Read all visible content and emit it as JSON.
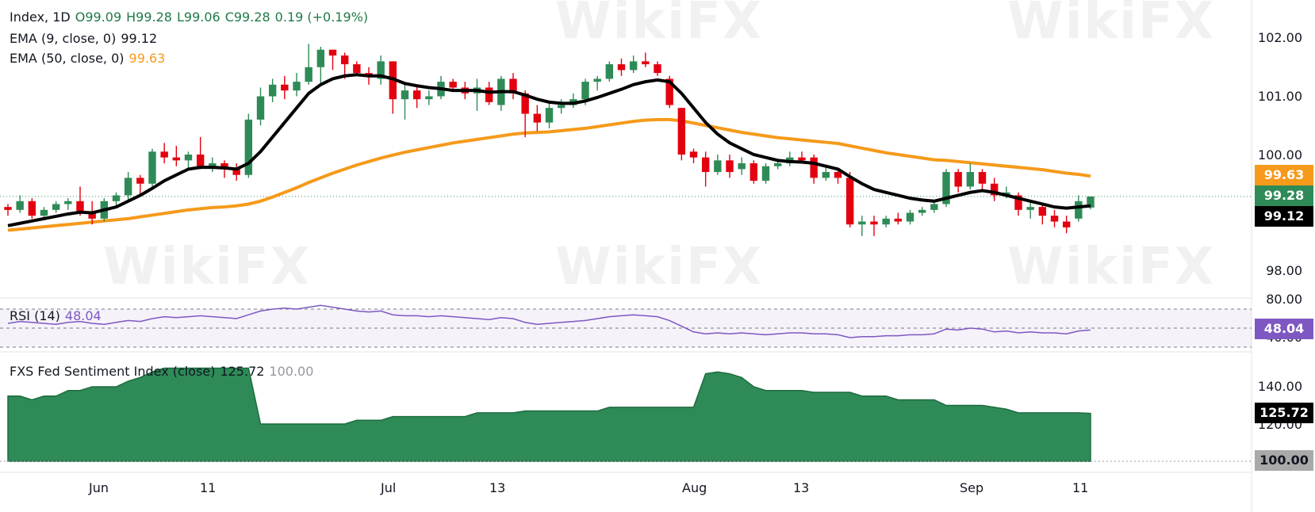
{
  "legend": {
    "symbol": "Index, 1D",
    "open": "O99.09",
    "high": "H99.28",
    "low": "L99.06",
    "close": "C99.28",
    "change": "0.19 (+0.19%)",
    "ema9_label": "EMA (9, close, 0)",
    "ema9_value": "99.12",
    "ema50_label": "EMA (50, close, 0)",
    "ema50_value": "99.63",
    "rsi_label": "RSI (14)",
    "rsi_value": "48.04",
    "fxs_label": "FXS Fed Sentiment Index (close)",
    "fxs_value": "125.72",
    "fxs_base": "100.00"
  },
  "price_tags": {
    "ema50": "99.63",
    "close": "99.28",
    "ema9": "99.12",
    "rsi": "48.04",
    "fxs": "125.72",
    "fxs_base": "100.00"
  },
  "y_axis": {
    "price": [
      "102.00",
      "101.00",
      "100.00",
      "98.00"
    ],
    "rsi": [
      "80.00",
      "40.00"
    ],
    "fxs": [
      "140.00",
      "120.00"
    ]
  },
  "x_axis": [
    "Jun",
    "11",
    "Jul",
    "13",
    "Aug",
    "13",
    "Sep",
    "11"
  ],
  "watermark": "WikiFX",
  "colors": {
    "up": "#2e8b57",
    "down": "#e3000f",
    "ema9": "#000000",
    "ema50": "#f59a1b",
    "rsi": "#7e57c2",
    "fxs_fill": "#2e8b57"
  },
  "chart_data": [
    {
      "type": "candlestick",
      "title": "Index, 1D",
      "ylim": [
        97.7,
        102.5
      ],
      "candles": [
        [
          99.1,
          99.15,
          98.95,
          99.05
        ],
        [
          99.05,
          99.3,
          99.0,
          99.2
        ],
        [
          99.2,
          99.25,
          98.9,
          98.95
        ],
        [
          98.95,
          99.1,
          98.9,
          99.05
        ],
        [
          99.05,
          99.2,
          99.0,
          99.15
        ],
        [
          99.15,
          99.25,
          99.05,
          99.2
        ],
        [
          99.2,
          99.45,
          98.95,
          99.0
        ],
        [
          99.0,
          99.2,
          98.8,
          98.9
        ],
        [
          98.9,
          99.25,
          98.85,
          99.2
        ],
        [
          99.2,
          99.35,
          99.1,
          99.3
        ],
        [
          99.3,
          99.7,
          99.2,
          99.6
        ],
        [
          99.6,
          99.65,
          99.3,
          99.5
        ],
        [
          99.5,
          100.1,
          99.45,
          100.05
        ],
        [
          100.05,
          100.2,
          99.85,
          99.95
        ],
        [
          99.95,
          100.15,
          99.8,
          99.9
        ],
        [
          99.9,
          100.05,
          99.75,
          100.0
        ],
        [
          100.0,
          100.3,
          99.75,
          99.8
        ],
        [
          99.8,
          99.95,
          99.7,
          99.85
        ],
        [
          99.85,
          99.9,
          99.6,
          99.75
        ],
        [
          99.75,
          99.85,
          99.55,
          99.65
        ],
        [
          99.65,
          100.7,
          99.6,
          100.6
        ],
        [
          100.6,
          101.15,
          100.5,
          101.0
        ],
        [
          101.0,
          101.3,
          100.9,
          101.2
        ],
        [
          101.2,
          101.35,
          100.95,
          101.1
        ],
        [
          101.1,
          101.4,
          101.0,
          101.25
        ],
        [
          101.25,
          101.9,
          101.2,
          101.5
        ],
        [
          101.5,
          101.85,
          101.2,
          101.8
        ],
        [
          101.8,
          101.8,
          101.45,
          101.7
        ],
        [
          101.7,
          101.75,
          101.3,
          101.55
        ],
        [
          101.55,
          101.6,
          101.35,
          101.4
        ],
        [
          101.4,
          101.5,
          101.2,
          101.35
        ],
        [
          101.3,
          101.7,
          101.2,
          101.6
        ],
        [
          101.6,
          101.6,
          100.7,
          100.95
        ],
        [
          100.95,
          101.2,
          100.6,
          101.1
        ],
        [
          101.1,
          101.2,
          100.8,
          100.95
        ],
        [
          100.95,
          101.1,
          100.85,
          101.0
        ],
        [
          101.0,
          101.35,
          100.95,
          101.25
        ],
        [
          101.25,
          101.3,
          101.1,
          101.15
        ],
        [
          101.15,
          101.25,
          100.95,
          101.05
        ],
        [
          101.05,
          101.3,
          100.75,
          101.15
        ],
        [
          101.15,
          101.25,
          100.85,
          100.9
        ],
        [
          100.85,
          101.35,
          100.75,
          101.3
        ],
        [
          101.3,
          101.4,
          100.95,
          101.05
        ],
        [
          101.05,
          101.1,
          100.3,
          100.7
        ],
        [
          100.7,
          100.85,
          100.4,
          100.55
        ],
        [
          100.55,
          100.9,
          100.45,
          100.8
        ],
        [
          100.8,
          100.95,
          100.7,
          100.85
        ],
        [
          100.85,
          101.05,
          100.8,
          100.95
        ],
        [
          100.95,
          101.3,
          100.85,
          101.25
        ],
        [
          101.25,
          101.35,
          101.1,
          101.3
        ],
        [
          101.3,
          101.6,
          101.25,
          101.55
        ],
        [
          101.55,
          101.65,
          101.35,
          101.45
        ],
        [
          101.45,
          101.7,
          101.4,
          101.6
        ],
        [
          101.6,
          101.75,
          101.5,
          101.55
        ],
        [
          101.55,
          101.6,
          101.35,
          101.4
        ],
        [
          101.3,
          101.35,
          100.8,
          100.85
        ],
        [
          100.8,
          100.8,
          99.9,
          100.0
        ],
        [
          100.05,
          100.1,
          99.85,
          99.95
        ],
        [
          99.95,
          100.05,
          99.45,
          99.7
        ],
        [
          99.7,
          100.0,
          99.65,
          99.9
        ],
        [
          99.9,
          100.0,
          99.6,
          99.7
        ],
        [
          99.75,
          99.95,
          99.65,
          99.85
        ],
        [
          99.85,
          99.9,
          99.5,
          99.55
        ],
        [
          99.55,
          99.85,
          99.5,
          99.8
        ],
        [
          99.8,
          99.9,
          99.75,
          99.85
        ],
        [
          99.85,
          100.05,
          99.8,
          99.95
        ],
        [
          99.95,
          100.05,
          99.85,
          99.9
        ],
        [
          99.95,
          100.0,
          99.5,
          99.6
        ],
        [
          99.6,
          99.8,
          99.55,
          99.7
        ],
        [
          99.7,
          99.75,
          99.5,
          99.6
        ],
        [
          99.6,
          99.7,
          98.75,
          98.8
        ],
        [
          98.8,
          98.95,
          98.6,
          98.85
        ],
        [
          98.85,
          98.95,
          98.6,
          98.8
        ],
        [
          98.8,
          98.95,
          98.75,
          98.9
        ],
        [
          98.9,
          99.0,
          98.8,
          98.85
        ],
        [
          98.85,
          99.05,
          98.8,
          99.0
        ],
        [
          99.0,
          99.1,
          98.95,
          99.05
        ],
        [
          99.05,
          99.2,
          99.0,
          99.15
        ],
        [
          99.15,
          99.75,
          99.1,
          99.7
        ],
        [
          99.7,
          99.75,
          99.35,
          99.45
        ],
        [
          99.45,
          99.85,
          99.4,
          99.7
        ],
        [
          99.7,
          99.75,
          99.4,
          99.5
        ],
        [
          99.5,
          99.6,
          99.2,
          99.3
        ],
        [
          99.3,
          99.45,
          99.25,
          99.35
        ],
        [
          99.3,
          99.35,
          98.95,
          99.05
        ],
        [
          99.05,
          99.2,
          98.9,
          99.1
        ],
        [
          99.1,
          99.15,
          98.8,
          98.95
        ],
        [
          98.95,
          99.05,
          98.75,
          98.85
        ],
        [
          98.85,
          98.95,
          98.65,
          98.75
        ],
        [
          98.9,
          99.3,
          98.85,
          99.2
        ],
        [
          99.09,
          99.28,
          99.06,
          99.28
        ]
      ],
      "ema9": [
        98.78,
        98.82,
        98.86,
        98.9,
        98.94,
        98.98,
        99.01,
        99.0,
        99.05,
        99.1,
        99.2,
        99.3,
        99.42,
        99.55,
        99.65,
        99.75,
        99.78,
        99.78,
        99.77,
        99.75,
        99.85,
        100.05,
        100.3,
        100.55,
        100.8,
        101.05,
        101.2,
        101.3,
        101.35,
        101.37,
        101.35,
        101.35,
        101.3,
        101.22,
        101.18,
        101.15,
        101.13,
        101.1,
        101.1,
        101.1,
        101.07,
        101.08,
        101.08,
        101.02,
        100.95,
        100.9,
        100.88,
        100.88,
        100.92,
        100.98,
        101.05,
        101.12,
        101.2,
        101.25,
        101.28,
        101.25,
        101.05,
        100.8,
        100.55,
        100.35,
        100.2,
        100.1,
        100.0,
        99.95,
        99.9,
        99.88,
        99.87,
        99.85,
        99.8,
        99.75,
        99.62,
        99.5,
        99.4,
        99.35,
        99.3,
        99.25,
        99.22,
        99.2,
        99.25,
        99.3,
        99.35,
        99.38,
        99.35,
        99.3,
        99.25,
        99.2,
        99.15,
        99.1,
        99.08,
        99.1,
        99.12
      ],
      "ema50": [
        98.7,
        98.72,
        98.74,
        98.76,
        98.78,
        98.8,
        98.82,
        98.84,
        98.86,
        98.88,
        98.9,
        98.93,
        98.96,
        98.99,
        99.02,
        99.05,
        99.07,
        99.09,
        99.1,
        99.12,
        99.15,
        99.2,
        99.27,
        99.35,
        99.43,
        99.52,
        99.6,
        99.68,
        99.75,
        99.82,
        99.88,
        99.94,
        99.99,
        100.04,
        100.08,
        100.12,
        100.16,
        100.2,
        100.23,
        100.26,
        100.29,
        100.32,
        100.35,
        100.37,
        100.38,
        100.39,
        100.41,
        100.43,
        100.45,
        100.48,
        100.51,
        100.54,
        100.57,
        100.59,
        100.6,
        100.6,
        100.58,
        100.54,
        100.5,
        100.46,
        100.42,
        100.38,
        100.35,
        100.32,
        100.29,
        100.27,
        100.25,
        100.23,
        100.21,
        100.19,
        100.15,
        100.11,
        100.07,
        100.03,
        100.0,
        99.97,
        99.94,
        99.91,
        99.9,
        99.88,
        99.86,
        99.84,
        99.82,
        99.8,
        99.78,
        99.76,
        99.74,
        99.71,
        99.68,
        99.66,
        99.63
      ]
    },
    {
      "type": "line",
      "title": "RSI (14)",
      "ylim": [
        30,
        90
      ],
      "values": [
        55,
        57,
        56,
        55,
        54,
        56,
        57,
        55,
        54,
        56,
        58,
        57,
        60,
        62,
        61,
        62,
        63,
        62,
        61,
        60,
        64,
        68,
        70,
        71,
        70,
        72,
        74,
        72,
        70,
        68,
        67,
        68,
        64,
        63,
        63,
        62,
        63,
        62,
        61,
        60,
        59,
        61,
        60,
        56,
        54,
        55,
        56,
        57,
        58,
        60,
        62,
        63,
        64,
        63,
        62,
        58,
        52,
        46,
        44,
        45,
        44,
        45,
        44,
        43,
        44,
        45,
        45,
        44,
        44,
        43,
        40,
        41,
        41,
        42,
        42,
        43,
        43,
        44,
        49,
        48,
        50,
        49,
        46,
        47,
        45,
        46,
        45,
        45,
        44,
        47,
        48.04
      ]
    },
    {
      "type": "area",
      "title": "FXS Fed Sentiment Index (close)",
      "ylim": [
        95,
        155
      ],
      "values": [
        135,
        135,
        133,
        135,
        135,
        138,
        138,
        140,
        140,
        140,
        143,
        145,
        148,
        150,
        150,
        150,
        150,
        150,
        150,
        150,
        150,
        120,
        120,
        120,
        120,
        120,
        120,
        120,
        120,
        122,
        122,
        122,
        124,
        124,
        124,
        124,
        124,
        124,
        124,
        126,
        126,
        126,
        126,
        127,
        127,
        127,
        127,
        127,
        127,
        127,
        129,
        129,
        129,
        129,
        129,
        129,
        129,
        129,
        147,
        148,
        147,
        145,
        140,
        138,
        138,
        138,
        138,
        137,
        137,
        137,
        137,
        135,
        135,
        135,
        133,
        133,
        133,
        133,
        130,
        130,
        130,
        130,
        129,
        128,
        126,
        126,
        126,
        126,
        126,
        126,
        125.72
      ]
    }
  ]
}
